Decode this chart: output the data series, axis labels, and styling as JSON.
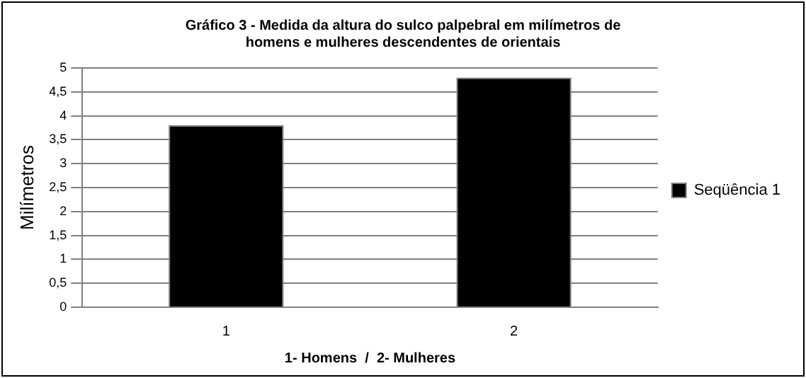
{
  "chart_data": {
    "type": "bar",
    "title": "Gráfico 3 - Medida da altura do sulco palpebral em milímetros de homens e mulheres descendentes de orientais",
    "xlabel": "1- Homens  /  2- Mulheres",
    "ylabel": "Milímetros",
    "categories": [
      "1",
      "2"
    ],
    "series": [
      {
        "name": "Seqüência 1",
        "color": "#000000",
        "values": [
          3.8,
          4.8
        ]
      }
    ],
    "ylim": [
      0,
      5
    ],
    "yticks": [
      0,
      {
        "value": 0.5,
        "label": "0,5"
      },
      1,
      {
        "value": 1.5,
        "label": "1,5"
      },
      2,
      {
        "value": 2.5,
        "label": "2,5"
      },
      3,
      {
        "value": 3.5,
        "label": "3,5"
      },
      4,
      {
        "value": 4.5,
        "label": "4,5"
      },
      5
    ],
    "grid": "y",
    "legend": "right"
  }
}
